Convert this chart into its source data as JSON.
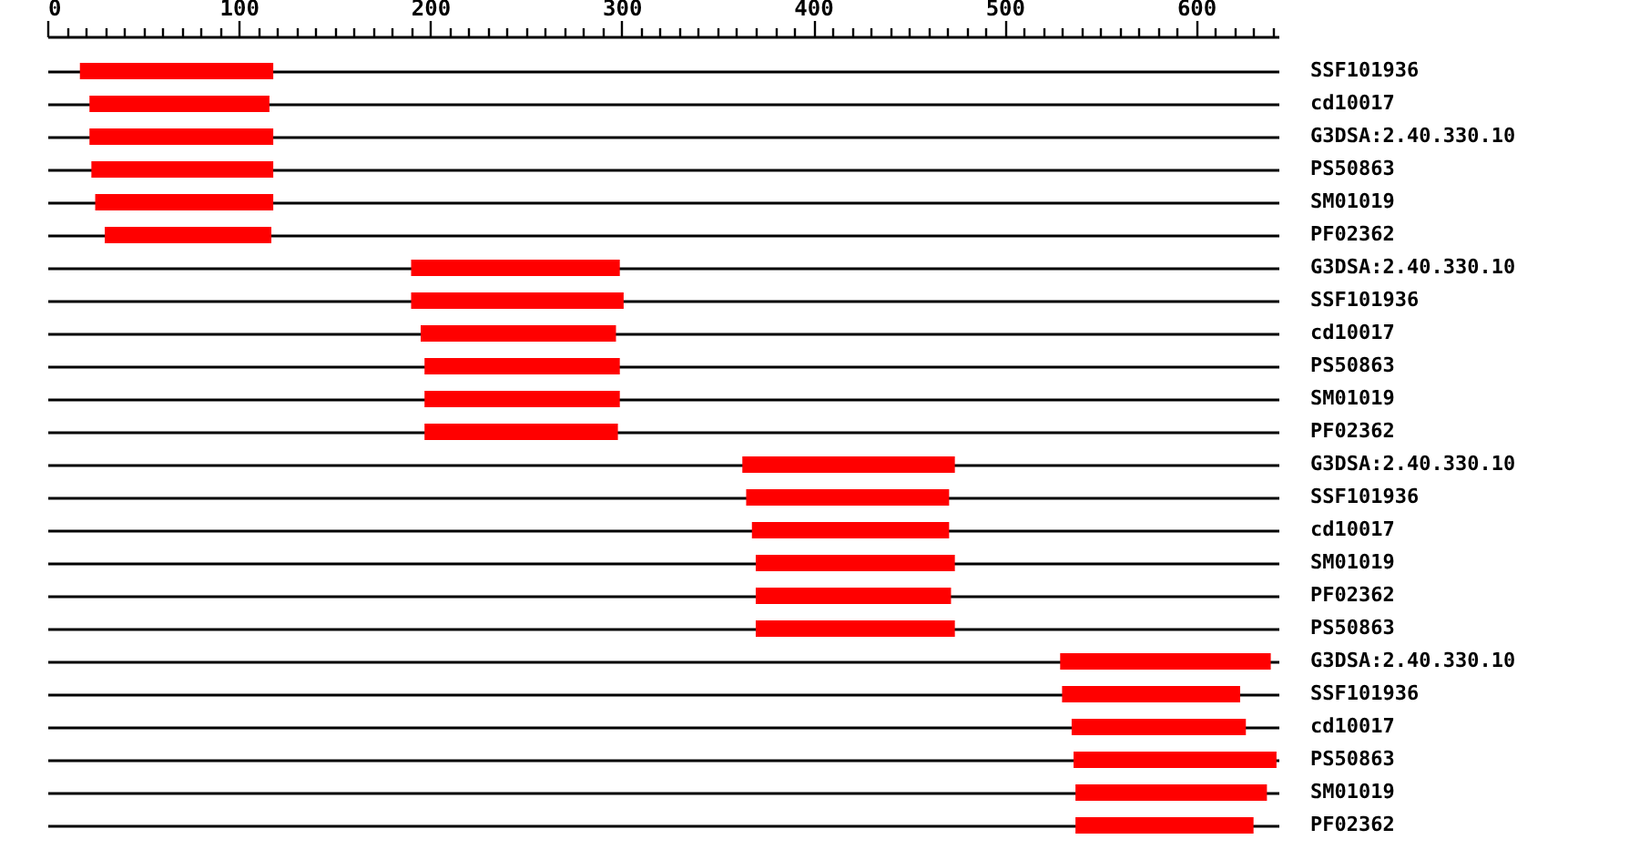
{
  "chart_data": {
    "type": "bar",
    "orientation": "horizontal",
    "grid": "y",
    "color": "#ff0000",
    "categories": [
      "SSF101936",
      "cd10017",
      "G3DSA:2.40.330.10",
      "PS50863",
      "SM01019",
      "PF02362",
      "G3DSA:2.40.330.10",
      "SSF101936",
      "cd10017",
      "PS50863",
      "SM01019",
      "PF02362",
      "G3DSA:2.40.330.10",
      "SSF101936",
      "cd10017",
      "SM01019",
      "PF02362",
      "PS50863",
      "G3DSA:2.40.330.10",
      "SSF101936",
      "cd10017",
      "PS50863",
      "SM01019",
      "PF02362"
    ],
    "base": [
      17,
      22,
      22,
      23,
      25,
      30,
      190,
      190,
      195,
      197,
      197,
      197,
      363,
      365,
      368,
      370,
      370,
      370,
      529,
      530,
      535,
      536,
      537,
      537
    ],
    "values": [
      101,
      94,
      96,
      95,
      93,
      87,
      109,
      111,
      102,
      102,
      102,
      101,
      111,
      106,
      103,
      104,
      102,
      104,
      110,
      93,
      91,
      106,
      100,
      93
    ],
    "xlim": [
      0,
      643
    ],
    "xticks": [
      0,
      {
        "value": 10,
        "label": null
      },
      {
        "value": 20,
        "label": null
      },
      {
        "value": 30,
        "label": null
      },
      {
        "value": 40,
        "label": null
      },
      {
        "value": 50,
        "label": null
      },
      {
        "value": 60,
        "label": null
      },
      {
        "value": 70,
        "label": null
      },
      {
        "value": 80,
        "label": null
      },
      {
        "value": 90,
        "label": null
      },
      100,
      {
        "value": 110,
        "label": null
      },
      {
        "value": 120,
        "label": null
      },
      {
        "value": 130,
        "label": null
      },
      {
        "value": 140,
        "label": null
      },
      {
        "value": 150,
        "label": null
      },
      {
        "value": 160,
        "label": null
      },
      {
        "value": 170,
        "label": null
      },
      {
        "value": 180,
        "label": null
      },
      {
        "value": 190,
        "label": null
      },
      200,
      {
        "value": 210,
        "label": null
      },
      {
        "value": 220,
        "label": null
      },
      {
        "value": 230,
        "label": null
      },
      {
        "value": 240,
        "label": null
      },
      {
        "value": 250,
        "label": null
      },
      {
        "value": 260,
        "label": null
      },
      {
        "value": 270,
        "label": null
      },
      {
        "value": 280,
        "label": null
      },
      {
        "value": 290,
        "label": null
      },
      300,
      {
        "value": 310,
        "label": null
      },
      {
        "value": 320,
        "label": null
      },
      {
        "value": 330,
        "label": null
      },
      {
        "value": 340,
        "label": null
      },
      {
        "value": 350,
        "label": null
      },
      {
        "value": 360,
        "label": null
      },
      {
        "value": 370,
        "label": null
      },
      {
        "value": 380,
        "label": null
      },
      {
        "value": 390,
        "label": null
      },
      400,
      {
        "value": 410,
        "label": null
      },
      {
        "value": 420,
        "label": null
      },
      {
        "value": 430,
        "label": null
      },
      {
        "value": 440,
        "label": null
      },
      {
        "value": 450,
        "label": null
      },
      {
        "value": 460,
        "label": null
      },
      {
        "value": 470,
        "label": null
      },
      {
        "value": 480,
        "label": null
      },
      {
        "value": 490,
        "label": null
      },
      500,
      {
        "value": 510,
        "label": null
      },
      {
        "value": 520,
        "label": null
      },
      {
        "value": 530,
        "label": null
      },
      {
        "value": 540,
        "label": null
      },
      {
        "value": 550,
        "label": null
      },
      {
        "value": 560,
        "label": null
      },
      {
        "value": 570,
        "label": null
      },
      {
        "value": 580,
        "label": null
      },
      {
        "value": 590,
        "label": null
      },
      600,
      {
        "value": 610,
        "label": null
      },
      {
        "value": 620,
        "label": null
      },
      {
        "value": 630,
        "label": null
      },
      {
        "value": 640,
        "label": null
      }
    ]
  }
}
